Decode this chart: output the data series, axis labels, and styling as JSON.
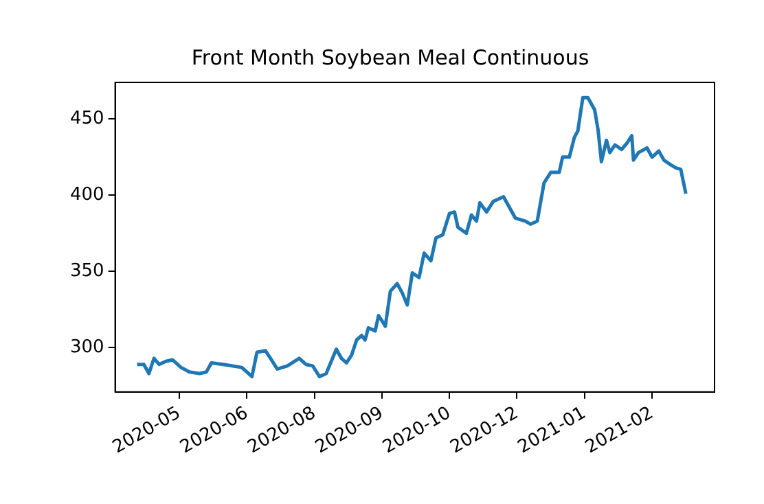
{
  "chart_data": {
    "type": "line",
    "title": "Front Month Soybean Meal Continuous",
    "x": [
      "2020-04-21",
      "2020-04-25",
      "2020-04-28",
      "2020-05-01",
      "2020-05-04",
      "2020-05-08",
      "2020-05-12",
      "2020-05-17",
      "2020-05-22",
      "2020-05-28",
      "2020-06-01",
      "2020-06-04",
      "2020-06-11",
      "2020-06-22",
      "2020-06-28",
      "2020-07-01",
      "2020-07-06",
      "2020-07-09",
      "2020-07-13",
      "2020-07-19",
      "2020-07-26",
      "2020-07-30",
      "2020-08-03",
      "2020-08-07",
      "2020-08-11",
      "2020-08-14",
      "2020-08-17",
      "2020-08-20",
      "2020-08-23",
      "2020-08-26",
      "2020-08-29",
      "2020-09-01",
      "2020-09-03",
      "2020-09-05",
      "2020-09-09",
      "2020-09-11",
      "2020-09-14",
      "2020-09-15",
      "2020-09-18",
      "2020-09-22",
      "2020-09-25",
      "2020-09-28",
      "2020-10-01",
      "2020-10-05",
      "2020-10-08",
      "2020-10-12",
      "2020-10-15",
      "2020-10-19",
      "2020-10-23",
      "2020-10-26",
      "2020-10-28",
      "2020-11-02",
      "2020-11-05",
      "2020-11-08",
      "2020-11-10",
      "2020-11-14",
      "2020-11-18",
      "2020-11-24",
      "2020-12-01",
      "2020-12-07",
      "2020-12-10",
      "2020-12-14",
      "2020-12-18",
      "2020-12-22",
      "2020-12-27",
      "2020-12-29",
      "2021-01-02",
      "2021-01-05",
      "2021-01-07",
      "2021-01-10",
      "2021-01-13",
      "2021-01-17",
      "2021-01-19",
      "2021-01-21",
      "2021-01-24",
      "2021-01-26",
      "2021-01-29",
      "2021-02-02",
      "2021-02-05",
      "2021-02-08",
      "2021-02-09",
      "2021-02-12",
      "2021-02-17",
      "2021-02-20",
      "2021-02-24",
      "2021-02-27",
      "2021-03-03",
      "2021-03-06",
      "2021-03-09",
      "2021-03-12"
    ],
    "series": [
      {
        "color": "#1f77b4",
        "values": [
          289,
          289,
          283,
          293,
          289,
          291,
          292,
          287,
          284,
          283,
          284,
          290,
          289,
          287,
          281,
          297,
          298,
          293,
          286,
          288,
          293,
          289,
          288,
          281,
          283,
          291,
          299,
          293,
          290,
          295,
          305,
          308,
          305,
          313,
          311,
          321,
          316,
          314,
          337,
          342,
          336,
          328,
          349,
          346,
          362,
          357,
          372,
          374,
          388,
          389,
          379,
          375,
          387,
          383,
          395,
          389,
          396,
          399,
          385,
          383,
          381,
          383,
          408,
          415,
          415,
          425,
          425,
          438,
          442,
          464,
          464,
          456,
          443,
          422,
          436,
          428,
          433,
          430,
          434,
          439,
          423,
          428,
          431,
          425,
          429,
          423,
          420,
          418,
          417,
          401
        ]
      }
    ],
    "xlim": [
      "2020-04-08",
      "2021-03-29"
    ],
    "xticks": [
      {
        "value": "2020-05-16",
        "label": "2020-05"
      },
      {
        "value": "2020-06-25",
        "label": "2020-06"
      },
      {
        "value": "2020-08-04",
        "label": "2020-08"
      },
      {
        "value": "2020-09-13",
        "label": "2020-09"
      },
      {
        "value": "2020-10-23",
        "label": "2020-10"
      },
      {
        "value": "2020-12-02",
        "label": "2020-12"
      },
      {
        "value": "2021-01-11",
        "label": "2021-01"
      },
      {
        "value": "2021-02-20",
        "label": "2021-02"
      }
    ],
    "ylim": [
      271,
      474
    ],
    "yticks": [
      300,
      350,
      400,
      450
    ],
    "grid": false,
    "legend": false,
    "marker": "none",
    "line_style": "solid"
  }
}
